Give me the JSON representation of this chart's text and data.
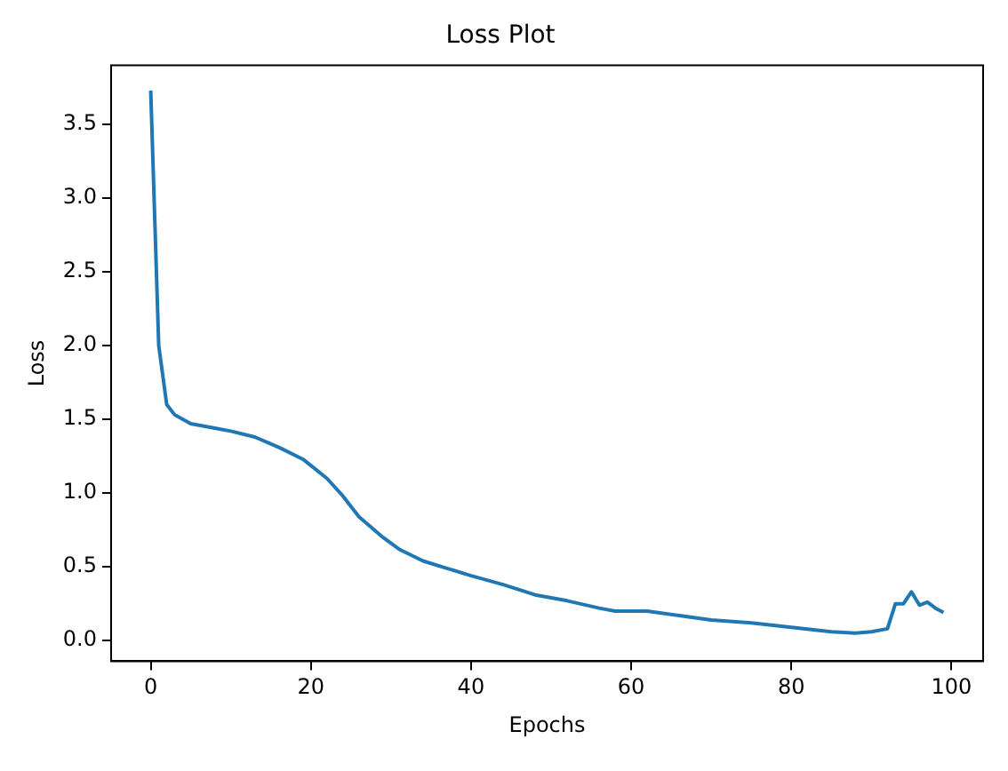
{
  "chart_data": {
    "type": "line",
    "title": "Loss Plot",
    "xlabel": "Epochs",
    "ylabel": "Loss",
    "xlim": [
      -4.95,
      103.95
    ],
    "xticks": [
      0,
      20,
      40,
      60,
      80,
      100
    ],
    "ylim": [
      -0.14,
      3.9
    ],
    "yticks": [
      {
        "value": 0,
        "label": "0.0"
      },
      0.5,
      {
        "value": 1,
        "label": "1.0"
      },
      1.5,
      {
        "value": 2,
        "label": "2.0"
      },
      2.5,
      {
        "value": 3,
        "label": "3.0"
      },
      3.5
    ],
    "grid": false,
    "legend": false,
    "marker": "none",
    "line_style": "solid",
    "series": [
      {
        "color": "#1f77b4",
        "x": [
          0,
          1,
          2,
          3,
          4,
          5,
          8,
          10,
          13,
          16,
          19,
          22,
          24,
          26,
          29,
          31,
          34,
          37,
          40,
          44,
          48,
          52,
          56,
          58,
          62,
          66,
          70,
          75,
          80,
          85,
          88,
          90,
          92,
          93,
          94,
          95,
          96,
          97,
          98,
          99
        ],
        "values": [
          3.73,
          2.0,
          1.6,
          1.53,
          1.5,
          1.47,
          1.44,
          1.42,
          1.38,
          1.31,
          1.23,
          1.1,
          0.98,
          0.84,
          0.7,
          0.62,
          0.54,
          0.49,
          0.44,
          0.38,
          0.31,
          0.27,
          0.22,
          0.2,
          0.2,
          0.17,
          0.14,
          0.12,
          0.09,
          0.06,
          0.05,
          0.06,
          0.08,
          0.25,
          0.25,
          0.33,
          0.24,
          0.26,
          0.22,
          0.19
        ]
      }
    ]
  }
}
